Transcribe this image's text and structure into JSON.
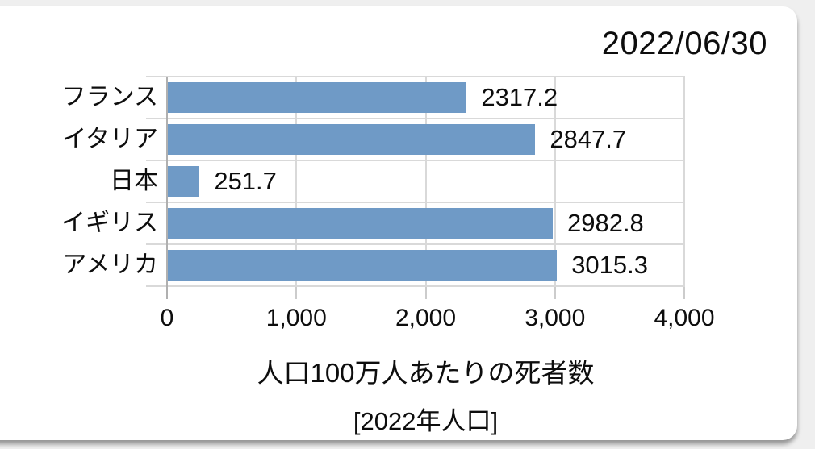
{
  "header": {
    "date": "2022/06/30"
  },
  "chart_data": {
    "type": "bar",
    "orientation": "horizontal",
    "categories": [
      "フランス",
      "イタリア",
      "日本",
      "イギリス",
      "アメリカ"
    ],
    "values": [
      2317.2,
      2847.7,
      251.7,
      2982.8,
      3015.3
    ],
    "value_labels": [
      "2317.2",
      "2847.7",
      "251.7",
      "2982.8",
      "3015.3"
    ],
    "xlabel": "人口100万人あたりの死者数",
    "sublabel": "[2022年人口]",
    "xlim": [
      0,
      4000
    ],
    "x_ticks": [
      0,
      1000,
      2000,
      3000,
      4000
    ],
    "x_tick_labels": [
      "0",
      "1,000",
      "2,000",
      "3,000",
      "4,000"
    ],
    "bar_color": "#6F9AC6",
    "grid": true,
    "legend_position": "none",
    "title": "2022/06/30"
  }
}
